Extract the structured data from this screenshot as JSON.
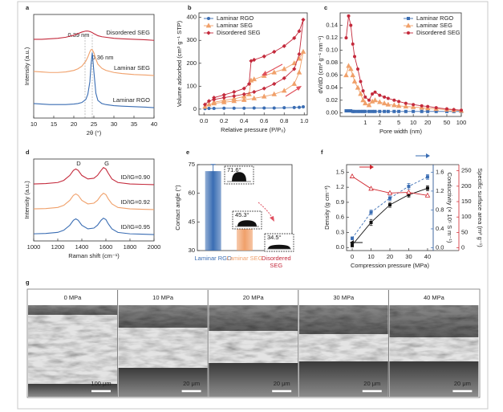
{
  "chart_data": [
    {
      "type": "line",
      "panel": "a",
      "xlabel": "2θ (°)",
      "ylabel": "Intensity (a.u.)",
      "x": [
        10,
        12,
        14,
        16,
        18,
        20,
        21,
        22,
        23,
        23.5,
        24,
        24.3,
        24.6,
        25,
        25.5,
        26,
        27,
        28,
        30,
        32,
        35,
        38,
        40
      ],
      "xlim": [
        10,
        40
      ],
      "xticks": [
        10,
        15,
        20,
        25,
        30,
        35,
        40
      ],
      "ylim": [
        0,
        10
      ],
      "vlines": [
        22.8,
        24.6
      ],
      "annotations": [
        "0.39 nm",
        "0.36 nm"
      ],
      "series": [
        {
          "label": "Laminar RGO",
          "color": "#3a6db3",
          "values": [
            1.4,
            1.35,
            1.3,
            1.3,
            1.3,
            1.35,
            1.4,
            1.5,
            1.8,
            2.3,
            3.5,
            5.2,
            6.3,
            4.5,
            2.4,
            1.7,
            1.4,
            1.3,
            1.2,
            1.15,
            1.1,
            1.05,
            1.0
          ]
        },
        {
          "label": "Laminar SEG",
          "color": "#f0a06a",
          "values": [
            4.5,
            4.45,
            4.4,
            4.4,
            4.45,
            4.6,
            4.75,
            5.0,
            5.5,
            5.9,
            6.4,
            6.6,
            6.6,
            6.3,
            5.7,
            5.2,
            4.8,
            4.6,
            4.4,
            4.3,
            4.2,
            4.15,
            4.1
          ]
        },
        {
          "label": "Disordered SEG",
          "color": "#c42a3c",
          "values": [
            7.6,
            7.6,
            7.65,
            7.7,
            7.8,
            8.0,
            8.15,
            8.3,
            8.4,
            8.4,
            8.35,
            8.3,
            8.25,
            8.15,
            8.05,
            7.95,
            7.85,
            7.8,
            7.7,
            7.65,
            7.6,
            7.55,
            7.5
          ]
        }
      ]
    },
    {
      "type": "line",
      "panel": "b",
      "xlabel": "Relative pressure (P/P₀)",
      "ylabel": "Volume adsorbed (cm³ g⁻¹ STP)",
      "xlim": [
        -0.05,
        1.03
      ],
      "xticks": [
        {
          "value": 0,
          "label": "0.0"
        },
        0.2,
        0.4,
        0.6,
        0.8,
        {
          "value": 1,
          "label": "1.0"
        }
      ],
      "ylim": [
        -25,
        420
      ],
      "yticks": [
        0,
        100,
        200,
        300,
        400
      ],
      "legend": "upper left",
      "series": [
        {
          "name": "Laminar RGO",
          "color": "#3a6db3",
          "marker": "circle",
          "x": [
            0.01,
            0.05,
            0.1,
            0.2,
            0.3,
            0.4,
            0.5,
            0.6,
            0.7,
            0.8,
            0.9,
            0.95,
            0.99
          ],
          "values": [
            2,
            3,
            3,
            4,
            4,
            4,
            5,
            5,
            5,
            6,
            7,
            8,
            10
          ]
        },
        {
          "name": "Laminar SEG",
          "color": "#f0a06a",
          "marker": "triangle",
          "x": [
            0.01,
            0.05,
            0.1,
            0.2,
            0.3,
            0.4,
            0.5,
            0.6,
            0.7,
            0.8,
            0.9,
            0.95,
            0.99,
            0.95,
            0.9,
            0.8,
            0.7,
            0.6,
            0.5,
            0.47,
            0.45,
            0.4,
            0.3,
            0.2,
            0.1
          ],
          "values": [
            10,
            20,
            25,
            30,
            35,
            40,
            47,
            55,
            65,
            80,
            110,
            160,
            250,
            220,
            200,
            175,
            160,
            145,
            130,
            125,
            65,
            55,
            45,
            38,
            30
          ]
        },
        {
          "name": "Disordered SEG",
          "color": "#c42a3c",
          "marker": "diamond",
          "x": [
            0.01,
            0.05,
            0.1,
            0.2,
            0.3,
            0.4,
            0.5,
            0.6,
            0.7,
            0.8,
            0.9,
            0.95,
            0.99,
            0.95,
            0.9,
            0.8,
            0.7,
            0.6,
            0.5,
            0.47,
            0.45,
            0.4,
            0.3,
            0.2,
            0.1
          ],
          "values": [
            20,
            35,
            42,
            50,
            57,
            65,
            75,
            90,
            110,
            135,
            175,
            240,
            390,
            340,
            310,
            275,
            250,
            230,
            215,
            210,
            110,
            90,
            75,
            62,
            50
          ]
        }
      ]
    },
    {
      "type": "line",
      "panel": "c",
      "xlabel": "Pore width (nm)",
      "ylabel": "dV/dD (cm³ g⁻¹ nm⁻¹)",
      "xlog": true,
      "x": [
        0.4,
        0.45,
        0.5,
        0.55,
        0.6,
        0.7,
        0.8,
        0.9,
        1,
        1.2,
        1.4,
        1.6,
        2,
        2.5,
        3,
        4,
        5,
        7,
        10,
        15,
        20,
        30,
        50,
        70,
        100
      ],
      "xlim": [
        0.3,
        100
      ],
      "xticks": [
        1,
        2,
        5,
        10,
        20,
        50,
        100
      ],
      "ylim": [
        -0.006,
        0.16
      ],
      "yticks": [
        {
          "value": 0,
          "label": "0.00"
        },
        0.02,
        0.04,
        0.06,
        0.08,
        {
          "value": 0.1,
          "label": "0.10"
        },
        0.12,
        0.14
      ],
      "legend": "upper right",
      "series": [
        {
          "name": "Laminar RGO",
          "color": "#3a6db3",
          "marker": "square",
          "values": [
            0.003,
            0.003,
            0.003,
            0.002,
            0.002,
            0.002,
            0.002,
            0.002,
            0.002,
            0.002,
            0.002,
            0.002,
            0.002,
            0.002,
            0.002,
            0.002,
            0.002,
            0.002,
            0.002,
            0.002,
            0.002,
            0.002,
            0.002,
            0.002,
            0.002
          ]
        },
        {
          "name": "Laminar SEG",
          "color": "#f0a06a",
          "marker": "triangle",
          "values": [
            0.06,
            0.075,
            0.07,
            0.06,
            0.05,
            0.04,
            0.03,
            0.02,
            0.015,
            0.012,
            0.018,
            0.02,
            0.017,
            0.015,
            0.013,
            0.012,
            0.011,
            0.01,
            0.009,
            0.008,
            0.007,
            0.006,
            0.005,
            0.004,
            0.003
          ]
        },
        {
          "name": "Disordered SEG",
          "color": "#c42a3c",
          "marker": "circle",
          "values": [
            0.12,
            0.155,
            0.14,
            0.11,
            0.09,
            0.07,
            0.05,
            0.035,
            0.025,
            0.02,
            0.03,
            0.033,
            0.028,
            0.025,
            0.023,
            0.02,
            0.018,
            0.015,
            0.013,
            0.011,
            0.01,
            0.008,
            0.006,
            0.005,
            0.004
          ]
        }
      ]
    },
    {
      "type": "line",
      "panel": "d",
      "xlabel": "Raman shift (cm⁻¹)",
      "ylabel": "Intensity (a.u.)",
      "x": [
        1000,
        1100,
        1200,
        1250,
        1300,
        1330,
        1350,
        1370,
        1400,
        1450,
        1500,
        1530,
        1560,
        1580,
        1600,
        1620,
        1650,
        1700,
        1800,
        1900,
        2000
      ],
      "xlim": [
        1000,
        2000
      ],
      "xticks": [
        1000,
        1200,
        1400,
        1600,
        1800,
        2000
      ],
      "ylim": [
        0,
        11.5
      ],
      "annotations": [
        "D",
        "G"
      ],
      "series": [
        {
          "label": "ID/IG=0.95",
          "color": "#3a6db3",
          "values": [
            1.0,
            1.05,
            1.2,
            1.5,
            2.2,
            2.9,
            3.1,
            2.9,
            2.2,
            1.7,
            1.8,
            2.2,
            2.9,
            3.2,
            3.0,
            2.4,
            1.7,
            1.2,
            1.0,
            0.95,
            0.9
          ]
        },
        {
          "label": "ID/IG=0.92",
          "color": "#f0a06a",
          "values": [
            4.5,
            4.55,
            4.7,
            5.0,
            5.7,
            6.4,
            6.6,
            6.4,
            5.7,
            5.2,
            5.3,
            5.7,
            6.4,
            6.7,
            6.5,
            5.9,
            5.2,
            4.7,
            4.5,
            4.45,
            4.4
          ]
        },
        {
          "label": "ID/IG=0.90",
          "color": "#c42a3c",
          "values": [
            8.0,
            8.05,
            8.2,
            8.5,
            9.2,
            9.9,
            10.1,
            9.9,
            9.2,
            8.7,
            8.8,
            9.2,
            9.9,
            10.3,
            10.1,
            9.5,
            8.7,
            8.2,
            8.0,
            7.95,
            7.9
          ]
        }
      ]
    },
    {
      "type": "bar",
      "panel": "e",
      "ylabel": "Contact angle (°)",
      "categories": [
        "Laminar RGO",
        "Laminar SEG",
        "Disordered SEG"
      ],
      "values": [
        71.6,
        45.3,
        34.5
      ],
      "errors": [
        3.5,
        2.8,
        1.6
      ],
      "value_labels": [
        "71.6°",
        "45.3°",
        "34.5°"
      ],
      "colors": [
        "#3a6db3",
        "#f0a06a",
        "#c42a3c"
      ],
      "ylim": [
        30,
        75
      ],
      "yticks": [
        30,
        45,
        60,
        75
      ]
    },
    {
      "type": "line",
      "panel": "f",
      "xlabel": "Compression pressure (MPa)",
      "ylabel": "Density (g cm⁻³)",
      "y2label": "Conductivity (× 10⁵ S m⁻¹)",
      "y3label": "Specific surface area (m² g⁻¹)",
      "x": [
        0,
        10,
        20,
        30,
        40
      ],
      "xlim": [
        -3,
        43
      ],
      "xticks": [
        0,
        10,
        20,
        30,
        40
      ],
      "ylim": [
        -0.06,
        1.65
      ],
      "yticks": [
        {
          "value": 0,
          "label": "0.0"
        },
        0.3,
        0.6,
        0.9,
        1.2,
        1.5
      ],
      "y2lim": [
        -0.06,
        1.76
      ],
      "y2ticks": [
        {
          "value": 0,
          "label": "0.0"
        },
        0.4,
        0.8,
        1.2,
        1.6
      ],
      "y2color": "#3a6db3",
      "y3lim": [
        -9,
        270
      ],
      "y3ticks": [
        0,
        50,
        100,
        150,
        200,
        250
      ],
      "y3color": "#d0262e",
      "series": [
        {
          "color": "#111111",
          "marker": "square",
          "values": [
            0.05,
            0.5,
            0.85,
            1.05,
            1.18
          ],
          "errors": [
            0.04,
            0.06,
            0.05,
            0.05,
            0.05
          ]
        },
        {
          "color": "#3a6db3",
          "marker": "square",
          "dash": true,
          "axis": "y2",
          "values": [
            0.2,
            0.75,
            1.05,
            1.3,
            1.5
          ],
          "errors": [
            0.03,
            0.05,
            0.05,
            0.06,
            0.05
          ]
        },
        {
          "color": "#d0262e",
          "marker": "triangle-open",
          "axis": "y3",
          "values": [
            232,
            192,
            178,
            180,
            170
          ]
        }
      ]
    }
  ],
  "sem": {
    "panel": "g",
    "images": [
      {
        "label": "0 MPa",
        "scale_bar": "100 μm"
      },
      {
        "label": "10 MPa",
        "scale_bar": "20 μm"
      },
      {
        "label": "20 MPa",
        "scale_bar": "20 μm"
      },
      {
        "label": "30 MPa",
        "scale_bar": "20 μm"
      },
      {
        "label": "40 MPa",
        "scale_bar": "20 μm"
      }
    ]
  }
}
